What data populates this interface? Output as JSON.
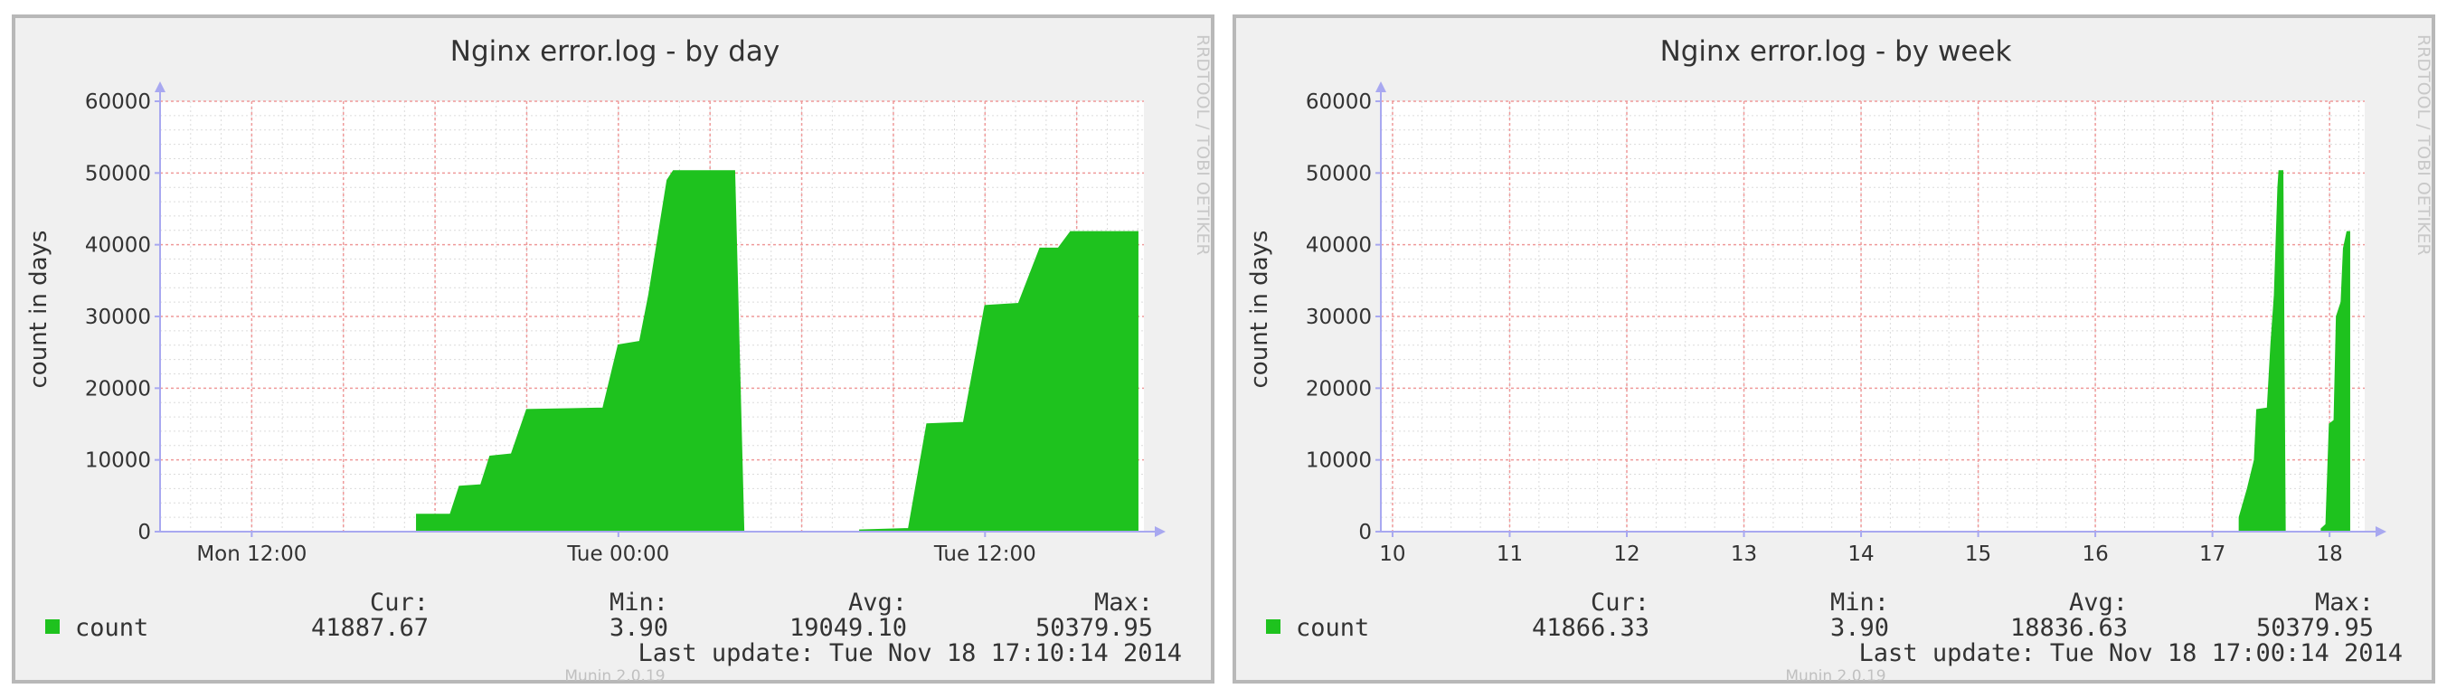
{
  "colors": {
    "series": "#1ec21e",
    "grid_major": "#ef9a9a",
    "grid_minor": "#dcdcdc",
    "axis": "#a8a8f0",
    "panel_bg": "#f0f0f0",
    "plot_bg": "#ffffff"
  },
  "graphs": [
    {
      "title": "Nginx error.log - by day",
      "vertical_tag": "RRDTOOL / TOBI OETIKER",
      "munin_version": "Munin 2.0.19",
      "legend": {
        "series_name": "count",
        "cur_label": "Cur:",
        "cur_value": "41887.67",
        "min_label": "Min:",
        "min_value": "3.90",
        "avg_label": "Avg:",
        "avg_value": "19049.10",
        "max_label": "Max:",
        "max_value": "50379.95",
        "last_update": "Last update: Tue Nov 18 17:10:14 2014"
      }
    },
    {
      "title": "Nginx error.log - by week",
      "vertical_tag": "RRDTOOL / TOBI OETIKER",
      "munin_version": "Munin 2.0.19",
      "legend": {
        "series_name": "count",
        "cur_label": "Cur:",
        "cur_value": "41866.33",
        "min_label": "Min:",
        "min_value": "3.90",
        "avg_label": "Avg:",
        "avg_value": "18836.63",
        "max_label": "Max:",
        "max_value": "50379.95",
        "last_update": "Last update: Tue Nov 18 17:00:14 2014"
      }
    }
  ],
  "chart_data": [
    {
      "type": "area",
      "title": "Nginx error.log - by day",
      "ylabel": "count in days",
      "ylim": [
        0,
        60000
      ],
      "y_ticks": [
        0,
        10000,
        20000,
        30000,
        40000,
        50000,
        60000
      ],
      "x_unit": "hours relative to Tue 00:00",
      "xlim": [
        -15,
        17.2
      ],
      "x_ticks": [
        {
          "at": -12,
          "label": "Mon 12:00"
        },
        {
          "at": 0,
          "label": "Tue 00:00"
        },
        {
          "at": 12,
          "label": "Tue 12:00"
        }
      ],
      "grid": true,
      "series": [
        {
          "name": "count",
          "points": [
            [
              -6.6,
              0
            ],
            [
              -6.6,
              2400
            ],
            [
              -5.5,
              2400
            ],
            [
              -5.2,
              6300
            ],
            [
              -4.5,
              6500
            ],
            [
              -4.2,
              10500
            ],
            [
              -3.5,
              10800
            ],
            [
              -3.0,
              17000
            ],
            [
              -0.5,
              17200
            ],
            [
              0.0,
              26000
            ],
            [
              0.7,
              26500
            ],
            [
              1.0,
              33000
            ],
            [
              1.6,
              49000
            ],
            [
              1.8,
              50300
            ],
            [
              3.8,
              50300
            ],
            [
              4.1,
              0
            ],
            [
              7.9,
              0
            ],
            [
              7.9,
              200
            ],
            [
              9.5,
              400
            ],
            [
              10.1,
              15000
            ],
            [
              11.3,
              15200
            ],
            [
              12.0,
              31500
            ],
            [
              13.1,
              31800
            ],
            [
              13.8,
              39500
            ],
            [
              14.4,
              39500
            ],
            [
              14.8,
              41800
            ],
            [
              17.0,
              41800
            ],
            [
              17.0,
              0
            ]
          ]
        }
      ]
    },
    {
      "type": "area",
      "title": "Nginx error.log - by week",
      "ylabel": "count in days",
      "ylim": [
        0,
        60000
      ],
      "y_ticks": [
        0,
        10000,
        20000,
        30000,
        40000,
        50000,
        60000
      ],
      "x_unit": "day of month (November 2014)",
      "xlim": [
        9.9,
        18.3
      ],
      "x_ticks": [
        {
          "at": 10,
          "label": "10"
        },
        {
          "at": 11,
          "label": "11"
        },
        {
          "at": 12,
          "label": "12"
        },
        {
          "at": 13,
          "label": "13"
        },
        {
          "at": 14,
          "label": "14"
        },
        {
          "at": 15,
          "label": "15"
        },
        {
          "at": 16,
          "label": "16"
        },
        {
          "at": 17,
          "label": "17"
        },
        {
          "at": 18,
          "label": "18"
        }
      ],
      "grid": true,
      "series": [
        {
          "name": "count",
          "points": [
            [
              17.23,
              0
            ],
            [
              17.23,
              2000
            ],
            [
              17.3,
              6000
            ],
            [
              17.36,
              10000
            ],
            [
              17.38,
              17000
            ],
            [
              17.47,
              17200
            ],
            [
              17.5,
              26000
            ],
            [
              17.53,
              33000
            ],
            [
              17.56,
              48000
            ],
            [
              17.57,
              50300
            ],
            [
              17.6,
              50300
            ],
            [
              17.62,
              0
            ],
            [
              17.93,
              0
            ],
            [
              17.93,
              400
            ],
            [
              17.97,
              1000
            ],
            [
              18.0,
              15000
            ],
            [
              18.04,
              15500
            ],
            [
              18.06,
              30000
            ],
            [
              18.1,
              32000
            ],
            [
              18.12,
              39500
            ],
            [
              18.15,
              41800
            ],
            [
              18.17,
              41800
            ],
            [
              18.17,
              0
            ]
          ]
        }
      ]
    }
  ]
}
